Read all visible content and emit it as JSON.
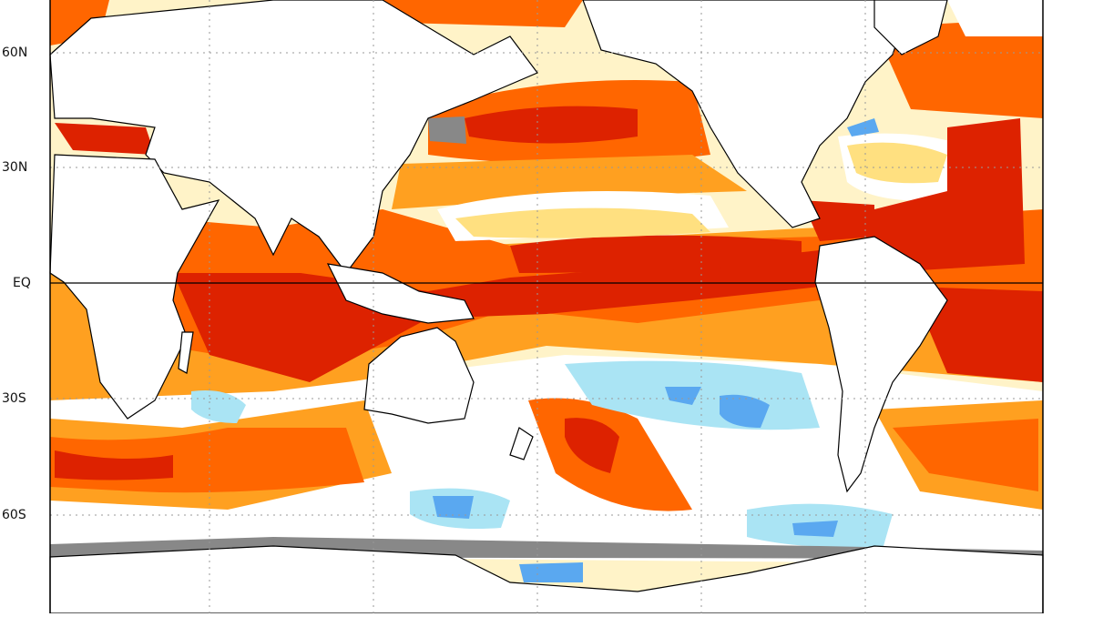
{
  "map": {
    "type": "sea-surface-temperature-anomaly",
    "projection": "equirectangular",
    "lat_labels": [
      "60N",
      "30N",
      "EQ",
      "30S",
      "60S"
    ],
    "lat_values": [
      60,
      30,
      0,
      -30,
      -60
    ],
    "colors": {
      "very_warm": "#dd2200",
      "warm": "#ff6600",
      "mild_warm": "#ffa020",
      "slight_warm": "#ffe080",
      "neutral": "#ffffff",
      "slight_cool": "#aae4f4",
      "cool": "#5aa8f0",
      "cold": "#2070e0",
      "no_data": "#888888",
      "land": "#ffffff",
      "coast": "#000000"
    }
  }
}
